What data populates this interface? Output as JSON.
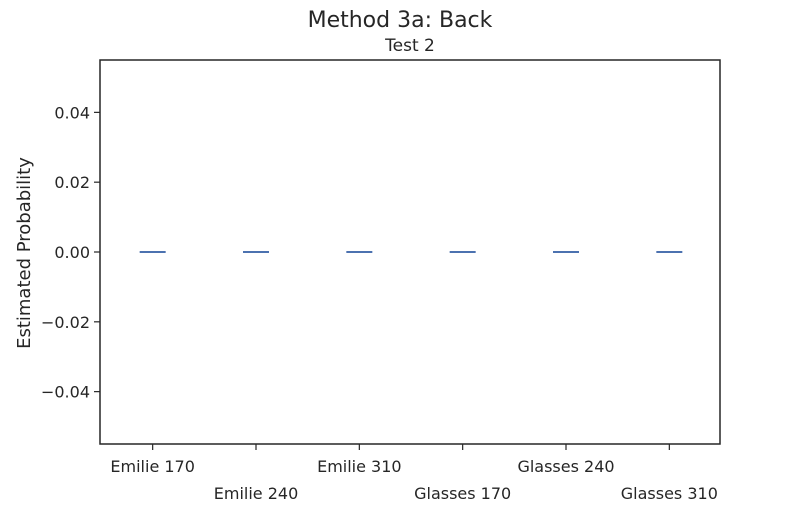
{
  "chart_data": {
    "type": "box",
    "title": "Method 3a: Back",
    "subtitle": "Test 2",
    "ylabel": "Estimated Probability",
    "xlabel": "",
    "categories": [
      "Emilie 170",
      "Emilie 240",
      "Emilie 310",
      "Glasses 170",
      "Glasses 240",
      "Glasses 310"
    ],
    "values": [
      0,
      0,
      0,
      0,
      0,
      0
    ],
    "ylim": [
      -0.055,
      0.055
    ],
    "yticks": [
      -0.04,
      -0.02,
      0.0,
      0.02,
      0.04
    ],
    "ytick_labels": [
      "−0.04",
      "−0.02",
      "0.00",
      "0.02",
      "0.04"
    ],
    "grid": false,
    "colors": {
      "series": "#4c72b0",
      "axes": "#262626"
    }
  }
}
